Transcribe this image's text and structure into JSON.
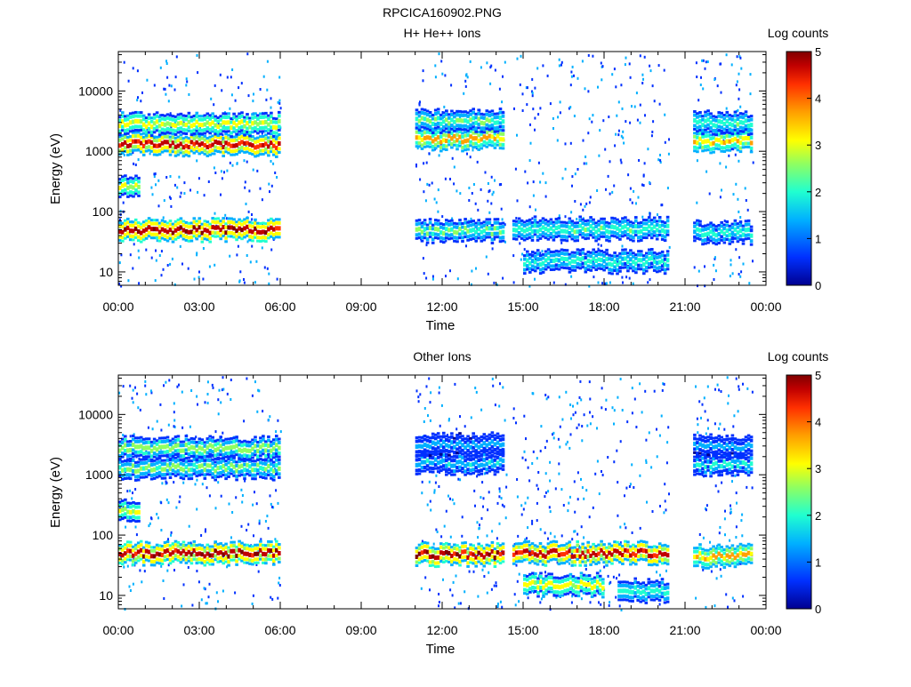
{
  "page": {
    "title": "RPCICA160902.PNG"
  },
  "colors": {
    "colormap": [
      "#000090",
      "#0030ff",
      "#00b0ff",
      "#20ffd0",
      "#90ff60",
      "#ffff00",
      "#ffa000",
      "#ff3000",
      "#c00000",
      "#800000"
    ]
  },
  "chart_data": [
    {
      "type": "heatmap",
      "title": "H+ He++ Ions",
      "xlabel": "Time",
      "ylabel": "Energy (eV)",
      "x_ticks": [
        "00:00",
        "03:00",
        "06:00",
        "09:00",
        "12:00",
        "15:00",
        "18:00",
        "21:00",
        "00:00"
      ],
      "xlim_hours": [
        0,
        24
      ],
      "y_scale": "log",
      "y_ticks": [
        "10",
        "100",
        "1000",
        "10000"
      ],
      "ylim": [
        6,
        45000
      ],
      "colorbar": {
        "label": "Log counts",
        "range": [
          0,
          5
        ],
        "ticks": [
          "0",
          "1",
          "2",
          "3",
          "4",
          "5"
        ]
      },
      "data_intervals_hours": [
        [
          0,
          6
        ],
        [
          11,
          14.4
        ],
        [
          14.6,
          20.4
        ],
        [
          21.3,
          23.5
        ]
      ],
      "bands": [
        {
          "t_start": 0,
          "t_end": 6,
          "energy_eV": 1300,
          "log_counts": 4.2
        },
        {
          "t_start": 0,
          "t_end": 6,
          "energy_eV": 2800,
          "log_counts": 2.6
        },
        {
          "t_start": 0,
          "t_end": 6,
          "energy_eV": 50,
          "log_counts": 4.6
        },
        {
          "t_start": 0,
          "t_end": 0.8,
          "energy_eV": 250,
          "log_counts": 2.5
        },
        {
          "t_start": 11,
          "t_end": 14.3,
          "energy_eV": 1600,
          "log_counts": 3.2
        },
        {
          "t_start": 11,
          "t_end": 14.3,
          "energy_eV": 3200,
          "log_counts": 2.0
        },
        {
          "t_start": 11,
          "t_end": 14.3,
          "energy_eV": 48,
          "log_counts": 2.0
        },
        {
          "t_start": 14.6,
          "t_end": 20.4,
          "energy_eV": 52,
          "log_counts": 1.8
        },
        {
          "t_start": 15,
          "t_end": 20.4,
          "energy_eV": 15,
          "log_counts": 1.5
        },
        {
          "t_start": 21.3,
          "t_end": 23.5,
          "energy_eV": 1500,
          "log_counts": 3.0
        },
        {
          "t_start": 21.3,
          "t_end": 23.5,
          "energy_eV": 3000,
          "log_counts": 1.8
        },
        {
          "t_start": 21.3,
          "t_end": 23.5,
          "energy_eV": 45,
          "log_counts": 1.5
        }
      ]
    },
    {
      "type": "heatmap",
      "title": "Other Ions",
      "xlabel": "Time",
      "ylabel": "Energy (eV)",
      "x_ticks": [
        "00:00",
        "03:00",
        "06:00",
        "09:00",
        "12:00",
        "15:00",
        "18:00",
        "21:00",
        "00:00"
      ],
      "xlim_hours": [
        0,
        24
      ],
      "y_scale": "log",
      "y_ticks": [
        "10",
        "100",
        "1000",
        "10000"
      ],
      "ylim": [
        6,
        45000
      ],
      "colorbar": {
        "label": "Log counts",
        "range": [
          0,
          5
        ],
        "ticks": [
          "0",
          "1",
          "2",
          "3",
          "4",
          "5"
        ]
      },
      "data_intervals_hours": [
        [
          0,
          6
        ],
        [
          11,
          14.4
        ],
        [
          14.6,
          20.4
        ],
        [
          21.3,
          23.5
        ]
      ],
      "bands": [
        {
          "t_start": 0,
          "t_end": 6,
          "energy_eV": 1300,
          "log_counts": 2.0
        },
        {
          "t_start": 0,
          "t_end": 6,
          "energy_eV": 2800,
          "log_counts": 2.2
        },
        {
          "t_start": 0,
          "t_end": 6,
          "energy_eV": 50,
          "log_counts": 4.5
        },
        {
          "t_start": 0,
          "t_end": 0.8,
          "energy_eV": 250,
          "log_counts": 2.5
        },
        {
          "t_start": 11,
          "t_end": 14.3,
          "energy_eV": 1600,
          "log_counts": 1.3
        },
        {
          "t_start": 11,
          "t_end": 14.3,
          "energy_eV": 3200,
          "log_counts": 1.0
        },
        {
          "t_start": 11,
          "t_end": 14.3,
          "energy_eV": 48,
          "log_counts": 4.5
        },
        {
          "t_start": 14.6,
          "t_end": 20.4,
          "energy_eV": 50,
          "log_counts": 4.3
        },
        {
          "t_start": 15,
          "t_end": 18,
          "energy_eV": 15,
          "log_counts": 2.7
        },
        {
          "t_start": 18.5,
          "t_end": 20.4,
          "energy_eV": 12,
          "log_counts": 1.5
        },
        {
          "t_start": 21.3,
          "t_end": 23.5,
          "energy_eV": 1500,
          "log_counts": 1.4
        },
        {
          "t_start": 21.3,
          "t_end": 23.5,
          "energy_eV": 3000,
          "log_counts": 1.0
        },
        {
          "t_start": 21.3,
          "t_end": 23.5,
          "energy_eV": 45,
          "log_counts": 3.2
        }
      ]
    }
  ]
}
